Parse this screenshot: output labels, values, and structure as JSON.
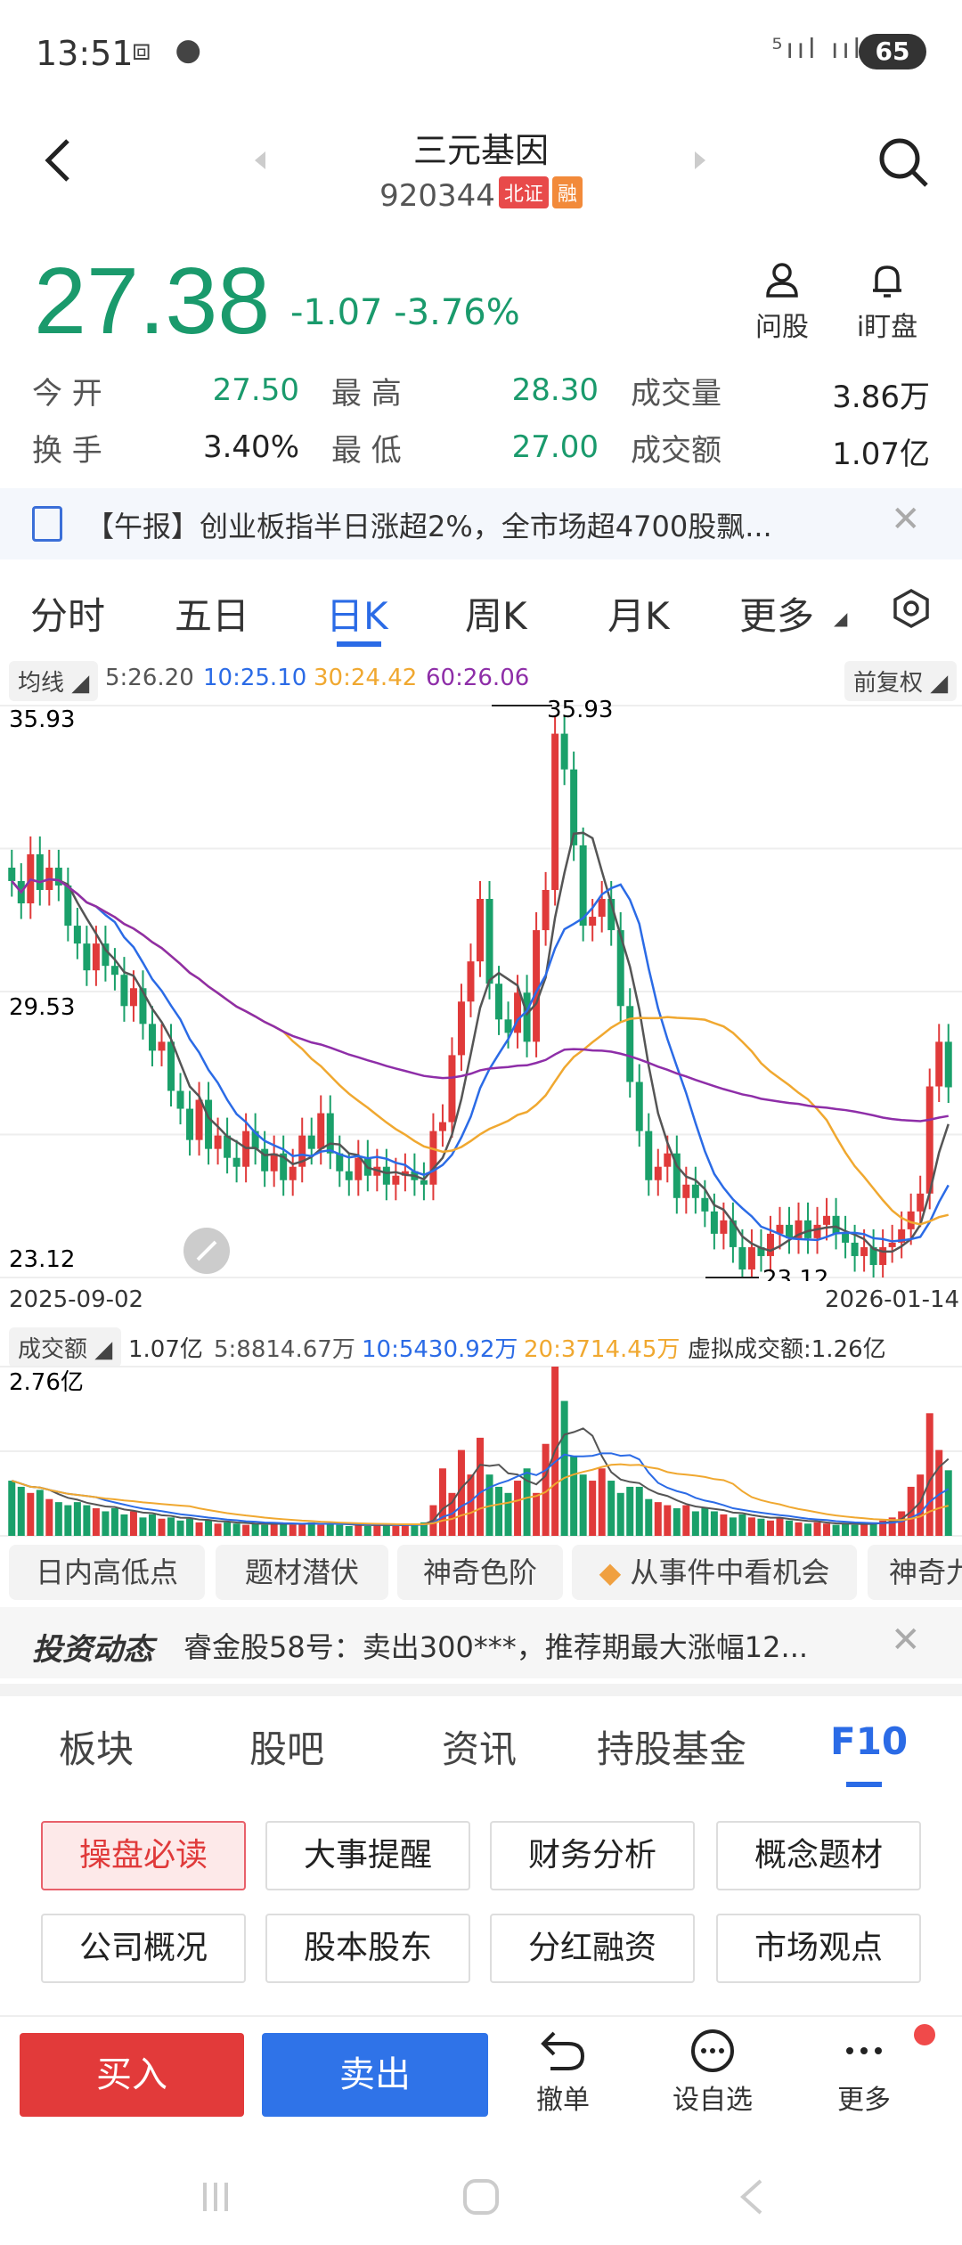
{
  "status": {
    "time": "13:51",
    "battery": "65",
    "signal": "⁵ııl ııl"
  },
  "header": {
    "title": "三元基因",
    "code": "920344",
    "tag_bz": "北证",
    "tag_rong": "融"
  },
  "quote": {
    "price": "27.38",
    "change": "-1.07",
    "change_pct": "-3.76%",
    "ask_label": "问股",
    "watch_label": "i盯盘"
  },
  "stats": [
    {
      "label": "今 开",
      "value": "27.50"
    },
    {
      "label": "最 高",
      "value": "28.30"
    },
    {
      "label": "成交量",
      "value": "3.86万"
    },
    {
      "label": "换 手",
      "value": "3.40%"
    },
    {
      "label": "最 低",
      "value": "27.00"
    },
    {
      "label": "成交额",
      "value": "1.07亿"
    }
  ],
  "news": {
    "text": "【午报】创业板指半日涨超2%，全市场超4700股飘..."
  },
  "tabs": [
    "分时",
    "五日",
    "日K",
    "周K",
    "月K",
    "更多"
  ],
  "ma": {
    "selector": "均线",
    "ma5": "5:26.20",
    "ma10": "10:25.10",
    "ma30": "30:24.42",
    "ma60": "60:26.06",
    "adjust": "前复权"
  },
  "chart_data": {
    "type": "candlestick",
    "y_labels": {
      "top": "35.93",
      "mid": "29.53",
      "bottom": "23.12"
    },
    "high_marker": "35.93",
    "low_marker": "23.12",
    "x_start": "2025-09-02",
    "x_end": "2026-01-14",
    "ylim": [
      23.12,
      35.93
    ],
    "colors": {
      "up": "#e03a3a",
      "down": "#1aa06a",
      "ma5": "#555555",
      "ma10": "#2b6be6",
      "ma30": "#f0a830",
      "ma60": "#8e2ea8"
    },
    "closes": [
      32.0,
      31.5,
      32.6,
      31.8,
      32.3,
      31.9,
      31.0,
      30.6,
      30.0,
      30.6,
      30.1,
      29.9,
      29.2,
      29.6,
      28.8,
      28.2,
      28.4,
      27.3,
      26.9,
      26.2,
      27.1,
      26.0,
      26.3,
      25.8,
      25.6,
      26.4,
      26.0,
      25.5,
      25.9,
      25.3,
      25.6,
      26.3,
      26.0,
      26.8,
      25.9,
      25.5,
      25.3,
      25.8,
      25.4,
      25.6,
      25.2,
      25.4,
      25.5,
      25.3,
      25.2,
      26.4,
      26.6,
      28.1,
      29.3,
      30.2,
      31.6,
      29.7,
      28.9,
      28.6,
      29.5,
      28.4,
      30.9,
      31.8,
      35.3,
      34.5,
      32.8,
      31.0,
      31.2,
      31.6,
      30.9,
      29.2,
      27.5,
      26.4,
      25.3,
      25.6,
      25.9,
      24.9,
      25.2,
      24.9,
      24.6,
      24.1,
      24.4,
      23.8,
      23.3,
      23.8,
      23.6,
      24.1,
      24.3,
      24.0,
      24.4,
      24.0,
      24.3,
      24.5,
      24.1,
      23.9,
      23.6,
      23.8,
      23.4,
      23.8,
      23.9,
      24.2,
      24.6,
      25.0,
      27.4,
      28.4,
      27.38
    ],
    "ma_values": {
      "ma5": "26.20",
      "ma10": "25.10",
      "ma30": "24.42",
      "ma60": "26.06"
    }
  },
  "volume": {
    "label": "成交额",
    "total": "1.07亿",
    "v5": "5:8814.67万",
    "v10": "10:5430.92万",
    "v20": "20:3714.45万",
    "virtual": "虚拟成交额:1.26亿",
    "max": "2.76亿",
    "values": [
      0.9,
      0.8,
      0.7,
      0.75,
      0.6,
      0.55,
      0.5,
      0.55,
      0.5,
      0.45,
      0.4,
      0.45,
      0.35,
      0.4,
      0.3,
      0.35,
      0.28,
      0.3,
      0.25,
      0.28,
      0.22,
      0.25,
      0.2,
      0.22,
      0.2,
      0.18,
      0.2,
      0.18,
      0.22,
      0.2,
      0.18,
      0.2,
      0.22,
      0.18,
      0.2,
      0.18,
      0.16,
      0.18,
      0.16,
      0.2,
      0.18,
      0.16,
      0.18,
      0.2,
      0.22,
      0.5,
      1.1,
      0.7,
      1.4,
      1.0,
      1.6,
      1.0,
      0.8,
      0.7,
      0.9,
      1.1,
      0.7,
      1.5,
      2.76,
      2.2,
      1.3,
      1.0,
      0.9,
      1.1,
      0.9,
      0.7,
      0.8,
      0.8,
      0.6,
      0.55,
      0.5,
      0.45,
      0.5,
      0.4,
      0.45,
      0.4,
      0.35,
      0.3,
      0.35,
      0.3,
      0.28,
      0.25,
      0.3,
      0.25,
      0.22,
      0.2,
      0.22,
      0.2,
      0.18,
      0.2,
      0.18,
      0.2,
      0.22,
      0.25,
      0.3,
      0.4,
      0.8,
      1.0,
      2.0,
      1.4,
      1.07
    ]
  },
  "features": [
    "日内高低点",
    "题材潜伏",
    "神奇色阶",
    "从事件中看机会",
    "神奇九"
  ],
  "invest": {
    "logo": "投资动态",
    "text": "睿金股58号：卖出300***，推荐期最大涨幅12..."
  },
  "bottom_tabs": [
    "板块",
    "股吧",
    "资讯",
    "持股基金",
    "F10"
  ],
  "grid_buttons": [
    "操盘必读",
    "大事提醒",
    "财务分析",
    "概念题材",
    "公司概况",
    "股本股东",
    "分红融资",
    "市场观点"
  ],
  "actions": {
    "buy": "买入",
    "sell": "卖出",
    "undo": "撤单",
    "add": "设自选",
    "more": "更多"
  }
}
